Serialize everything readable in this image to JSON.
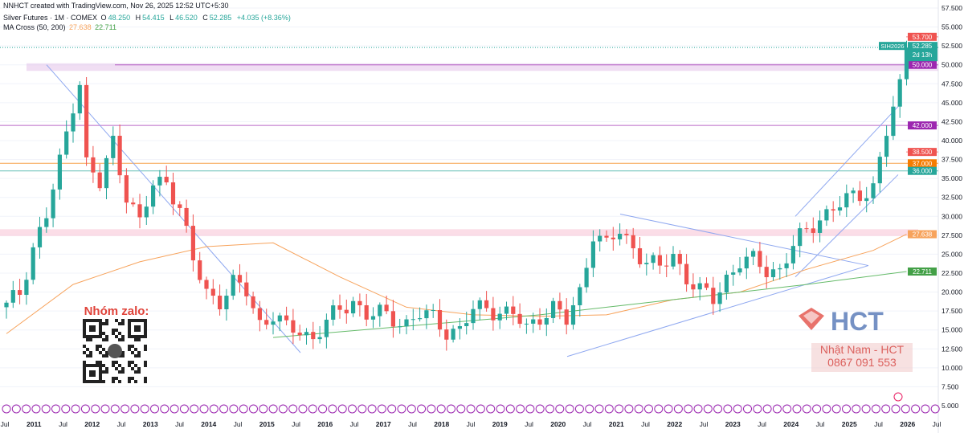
{
  "header": {
    "creator": "NNHCT created with TradingView.com, Nov 26, 2025 12:52 UTC+5:30",
    "symbol_desc": "Silver Futures · 1M · COMEX",
    "ohlc": {
      "O": "48.250",
      "H": "54.415",
      "L": "46.520",
      "C": "52.285",
      "change": "+4.035 (+8.36%)"
    },
    "ma_label": "MA Cross (50, 200)",
    "ma50": "27.638",
    "ma200": "22.711"
  },
  "overlay": {
    "zalo_title": "Nhóm zalo:",
    "brand": "HCT",
    "contact_name": "Nhật Nam - HCT",
    "contact_phone": "0867 091 553"
  },
  "colors": {
    "up": "#26a69a",
    "down": "#ef5350",
    "ma50": "#f7a35c",
    "ma200": "#66bb6a",
    "trend": "#8fa8f0",
    "purple": "#9c27b0",
    "brand_red": "#e0433a",
    "brand_blue": "#3b63ac"
  },
  "chart_data": {
    "type": "candlestick",
    "title": "Silver Futures · 1M · COMEX",
    "ylim": [
      5,
      57.5
    ],
    "y_ticks": [
      "5.000",
      "7.500",
      "10.000",
      "12.500",
      "15.000",
      "17.500",
      "20.000",
      "22.500",
      "25.000",
      "27.500",
      "30.000",
      "32.500",
      "35.000",
      "37.500",
      "40.000",
      "42.500",
      "45.000",
      "47.500",
      "50.000",
      "52.500",
      "55.000",
      "57.500"
    ],
    "x_ticks": [
      "Jul",
      "2011",
      "Jul",
      "2012",
      "Jul",
      "2013",
      "Jul",
      "2014",
      "Jul",
      "2015",
      "Jul",
      "2016",
      "Jul",
      "2017",
      "Jul",
      "2018",
      "Jul",
      "2019",
      "Jul",
      "2020",
      "Jul",
      "2021",
      "Jul",
      "2022",
      "Jul",
      "2023",
      "Jul",
      "2024",
      "Jul",
      "2025",
      "Jul",
      "2026",
      "Jul"
    ],
    "candles_anchor": [
      [
        0,
        18
      ],
      [
        2,
        20
      ],
      [
        4,
        26
      ],
      [
        6,
        30
      ],
      [
        8,
        37
      ],
      [
        10,
        45
      ],
      [
        11,
        48
      ],
      [
        12,
        37
      ],
      [
        14,
        34
      ],
      [
        16,
        40
      ],
      [
        18,
        33
      ],
      [
        20,
        29
      ],
      [
        22,
        34
      ],
      [
        24,
        35
      ],
      [
        26,
        31
      ],
      [
        28,
        24
      ],
      [
        30,
        20
      ],
      [
        32,
        19
      ],
      [
        34,
        21
      ],
      [
        36,
        20
      ],
      [
        38,
        16
      ],
      [
        40,
        17
      ],
      [
        42,
        15
      ],
      [
        44,
        15
      ],
      [
        46,
        14
      ],
      [
        48,
        16
      ],
      [
        50,
        17.5
      ],
      [
        52,
        19
      ],
      [
        54,
        17
      ],
      [
        56,
        17
      ],
      [
        58,
        16.5
      ],
      [
        60,
        16
      ],
      [
        62,
        17
      ],
      [
        64,
        16.5
      ],
      [
        66,
        15
      ],
      [
        68,
        15
      ],
      [
        70,
        17.5
      ],
      [
        72,
        18
      ],
      [
        74,
        17.5
      ],
      [
        76,
        17
      ],
      [
        78,
        15
      ],
      [
        80,
        17
      ],
      [
        82,
        18
      ],
      [
        84,
        16
      ],
      [
        86,
        20
      ],
      [
        88,
        28
      ],
      [
        90,
        26
      ],
      [
        92,
        28
      ],
      [
        94,
        26
      ],
      [
        96,
        24
      ],
      [
        98,
        23
      ],
      [
        100,
        25
      ],
      [
        102,
        22
      ],
      [
        104,
        20
      ],
      [
        106,
        19
      ],
      [
        108,
        22
      ],
      [
        110,
        24
      ],
      [
        112,
        24
      ],
      [
        114,
        23
      ],
      [
        116,
        23
      ],
      [
        118,
        26
      ],
      [
        120,
        28
      ],
      [
        122,
        30
      ],
      [
        124,
        31
      ],
      [
        126,
        32
      ],
      [
        128,
        33
      ],
      [
        130,
        34
      ],
      [
        132,
        41
      ],
      [
        134,
        47
      ],
      [
        135,
        52.285
      ]
    ],
    "ma50_anchor": [
      [
        0,
        14.5
      ],
      [
        10,
        21
      ],
      [
        20,
        24
      ],
      [
        30,
        26
      ],
      [
        40,
        26.5
      ],
      [
        50,
        22
      ],
      [
        60,
        18
      ],
      [
        70,
        17
      ],
      [
        80,
        16.8
      ],
      [
        90,
        17
      ],
      [
        100,
        19
      ],
      [
        110,
        20
      ],
      [
        120,
        23
      ],
      [
        130,
        25.5
      ],
      [
        135,
        27.638
      ]
    ],
    "ma200_anchor": [
      [
        40,
        14
      ],
      [
        60,
        15.5
      ],
      [
        80,
        17
      ],
      [
        100,
        19
      ],
      [
        120,
        21
      ],
      [
        135,
        22.711
      ]
    ],
    "levels": [
      {
        "label": "53.700",
        "value": 53.7,
        "color": "#ef5350"
      },
      {
        "label": "50.000",
        "value": 50.0,
        "color": "#9c27b0"
      },
      {
        "label": "42.000",
        "value": 42.0,
        "color": "#9c27b0"
      },
      {
        "label": "38.500",
        "value": 38.5,
        "color": "#ef5350"
      },
      {
        "label": "37.000",
        "value": 37.0,
        "color": "#f57c00"
      },
      {
        "label": "36.000",
        "value": 36.0,
        "color": "#26a69a"
      }
    ],
    "price_tags": [
      {
        "label": "27.638",
        "value": 27.638,
        "color": "#f7a35c"
      },
      {
        "label": "22.711",
        "value": 22.711,
        "color": "#43a047"
      }
    ],
    "last_price": {
      "symbol": "SIH2026",
      "value": "52.285",
      "countdown": "2d 13h"
    }
  }
}
